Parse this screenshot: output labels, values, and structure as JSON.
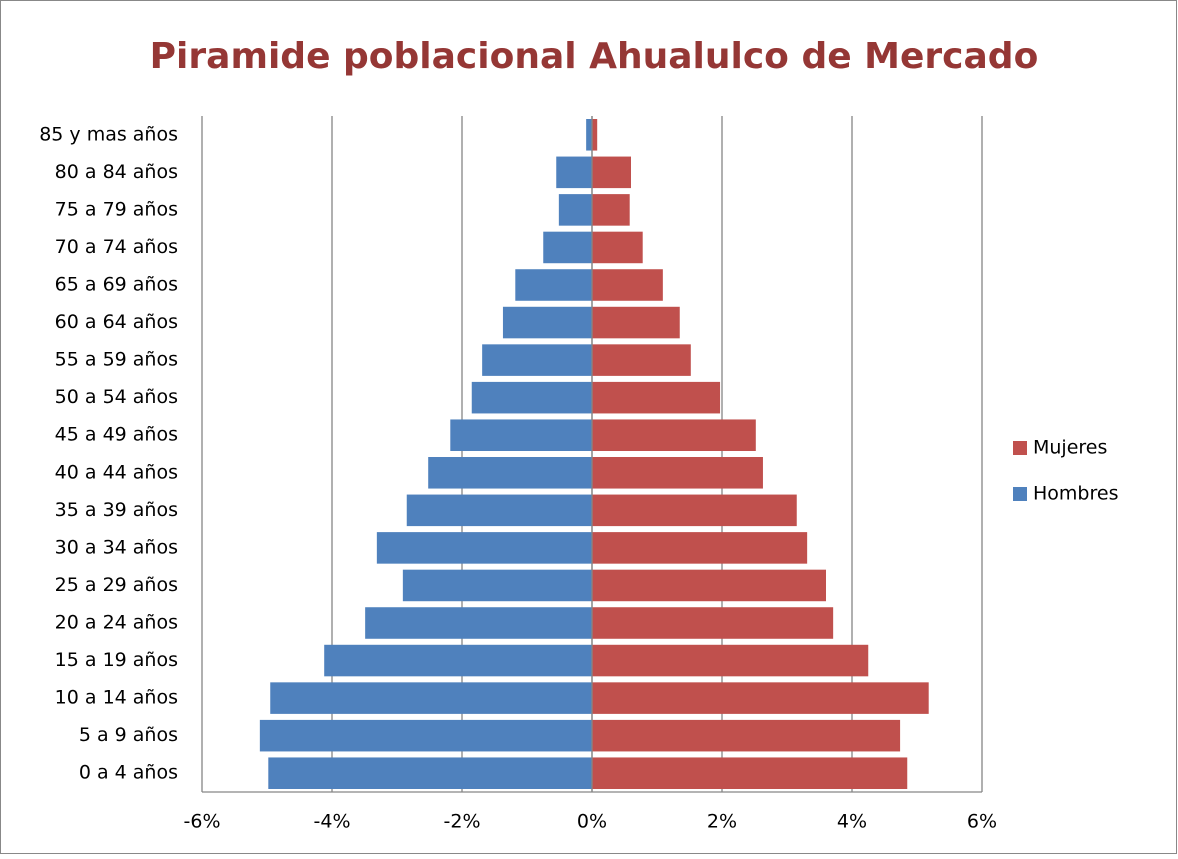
{
  "chart_data": {
    "type": "bar",
    "orientation": "horizontal",
    "title": "Piramide poblacional Ahualulco de Mercado",
    "categories": [
      "0 a 4 años",
      "5 a 9 años",
      "10 a 14 años",
      "15 a 19 años",
      "20 a 24 años",
      "25 a 29 años",
      "30 a 34 años",
      "35 a 39 años",
      "40 a 44 años",
      "45 a 49 años",
      "50 a 54 años",
      "55 a 59 años",
      "60 a 64 años",
      "65 a 69 años",
      "70 a 74 años",
      "75 a 79 años",
      "80 a 84 años",
      "85 y mas años"
    ],
    "series": [
      {
        "name": "Mujeres",
        "color": "#c0504d",
        "values": [
          4.85,
          4.74,
          5.18,
          4.25,
          3.71,
          3.6,
          3.31,
          3.15,
          2.63,
          2.52,
          1.97,
          1.52,
          1.35,
          1.09,
          0.78,
          0.58,
          0.6,
          0.08
        ]
      },
      {
        "name": "Hombres",
        "color": "#4f81bd",
        "values": [
          -4.98,
          -5.11,
          -4.95,
          -4.12,
          -3.49,
          -2.91,
          -3.31,
          -2.85,
          -2.52,
          -2.18,
          -1.85,
          -1.69,
          -1.37,
          -1.18,
          -0.75,
          -0.51,
          -0.55,
          -0.09
        ]
      }
    ],
    "xlim": [
      -6,
      6
    ],
    "xticks": [
      {
        "value": -6,
        "label": "-6%"
      },
      {
        "value": -4,
        "label": "-4%"
      },
      {
        "value": -2,
        "label": "-2%"
      },
      {
        "value": 0,
        "label": "0%"
      },
      {
        "value": 2,
        "label": "2%"
      },
      {
        "value": 4,
        "label": "4%"
      },
      {
        "value": 6,
        "label": "6%"
      }
    ],
    "grid": true,
    "legend": "right"
  }
}
